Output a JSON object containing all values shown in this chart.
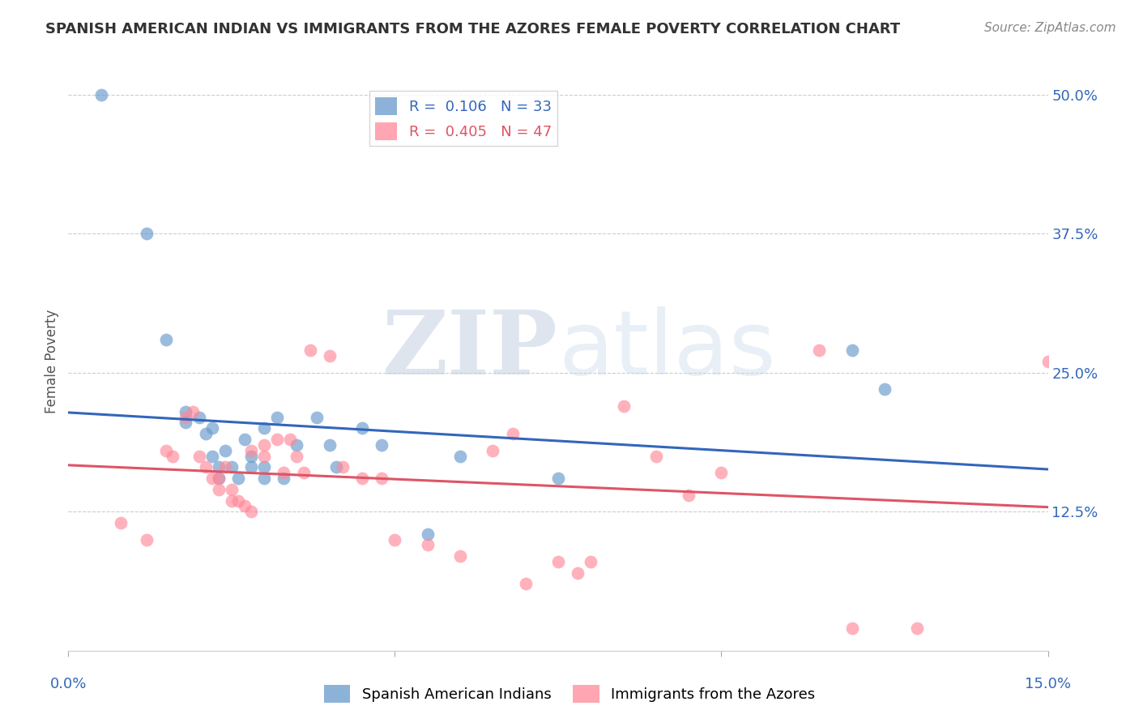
{
  "title": "SPANISH AMERICAN INDIAN VS IMMIGRANTS FROM THE AZORES FEMALE POVERTY CORRELATION CHART",
  "source": "Source: ZipAtlas.com",
  "ylabel": "Female Poverty",
  "yticks": [
    0.0,
    0.125,
    0.25,
    0.375,
    0.5
  ],
  "ytick_labels": [
    "",
    "12.5%",
    "25.0%",
    "37.5%",
    "50.0%"
  ],
  "xlim": [
    0.0,
    0.15
  ],
  "ylim": [
    0.0,
    0.52
  ],
  "blue_color": "#6699CC",
  "pink_color": "#FF8899",
  "blue_line_color": "#3366BB",
  "pink_line_color": "#DD5566",
  "blue_x": [
    0.005,
    0.012,
    0.015,
    0.018,
    0.018,
    0.02,
    0.021,
    0.022,
    0.022,
    0.023,
    0.023,
    0.024,
    0.025,
    0.026,
    0.027,
    0.028,
    0.028,
    0.03,
    0.03,
    0.03,
    0.032,
    0.033,
    0.035,
    0.038,
    0.04,
    0.041,
    0.045,
    0.048,
    0.055,
    0.06,
    0.075,
    0.12,
    0.125
  ],
  "blue_y": [
    0.5,
    0.375,
    0.28,
    0.215,
    0.205,
    0.21,
    0.195,
    0.2,
    0.175,
    0.165,
    0.155,
    0.18,
    0.165,
    0.155,
    0.19,
    0.175,
    0.165,
    0.165,
    0.155,
    0.2,
    0.21,
    0.155,
    0.185,
    0.21,
    0.185,
    0.165,
    0.2,
    0.185,
    0.105,
    0.175,
    0.155,
    0.27,
    0.235
  ],
  "pink_x": [
    0.008,
    0.012,
    0.015,
    0.016,
    0.018,
    0.019,
    0.02,
    0.021,
    0.022,
    0.023,
    0.023,
    0.024,
    0.025,
    0.025,
    0.026,
    0.027,
    0.028,
    0.028,
    0.03,
    0.03,
    0.032,
    0.033,
    0.034,
    0.035,
    0.036,
    0.037,
    0.04,
    0.042,
    0.045,
    0.048,
    0.05,
    0.055,
    0.06,
    0.065,
    0.068,
    0.07,
    0.075,
    0.078,
    0.08,
    0.085,
    0.09,
    0.095,
    0.1,
    0.115,
    0.12,
    0.13,
    0.15
  ],
  "pink_y": [
    0.115,
    0.1,
    0.18,
    0.175,
    0.21,
    0.215,
    0.175,
    0.165,
    0.155,
    0.155,
    0.145,
    0.165,
    0.145,
    0.135,
    0.135,
    0.13,
    0.125,
    0.18,
    0.185,
    0.175,
    0.19,
    0.16,
    0.19,
    0.175,
    0.16,
    0.27,
    0.265,
    0.165,
    0.155,
    0.155,
    0.1,
    0.095,
    0.085,
    0.18,
    0.195,
    0.06,
    0.08,
    0.07,
    0.08,
    0.22,
    0.175,
    0.14,
    0.16,
    0.27,
    0.02,
    0.02,
    0.26
  ]
}
